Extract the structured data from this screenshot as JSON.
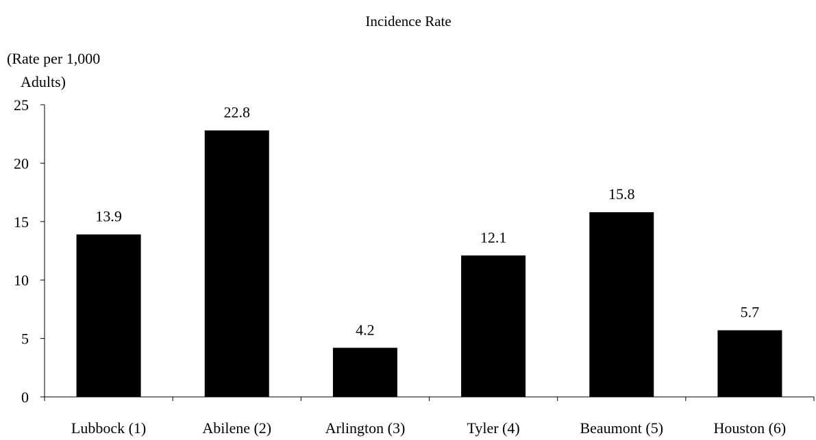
{
  "chart_data": {
    "type": "bar",
    "title": "Incidence Rate",
    "ylabel_line1": "(Rate per 1,000",
    "ylabel_line2": "Adults)",
    "xlabel": "",
    "categories": [
      "Lubbock (1)",
      "Abilene (2)",
      "Arlington (3)",
      "Tyler (4)",
      "Beaumont (5)",
      "Houston (6)"
    ],
    "values": [
      13.9,
      22.8,
      4.2,
      12.1,
      15.8,
      5.7
    ],
    "data_labels": [
      "13.9",
      "22.8",
      "4.2",
      "12.1",
      "15.8",
      "5.7"
    ],
    "ylim": [
      0,
      25
    ],
    "yticks": [
      0,
      5,
      10,
      15,
      20,
      25
    ],
    "grid": false,
    "bar_color": "#000000"
  }
}
